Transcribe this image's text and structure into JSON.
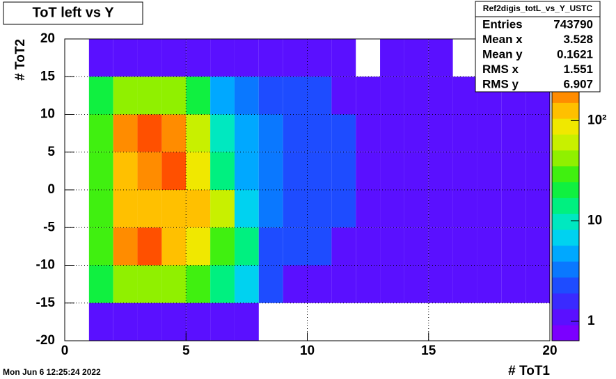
{
  "chart_data": {
    "type": "heatmap",
    "title": "ToT left vs Y",
    "x_label": "# ToT1",
    "y_label": "# ToT2",
    "timestamp": "Mon Jun  6 12:25:24 2022",
    "xbins": [
      0,
      1,
      2,
      3,
      4,
      5,
      6,
      7,
      8,
      9,
      10,
      11,
      12,
      13,
      14,
      15,
      16,
      17,
      18,
      19,
      20
    ],
    "ybins": [
      20,
      15,
      10,
      5,
      0,
      -5,
      -10,
      -15,
      -20
    ],
    "z": [
      [
        0,
        1,
        1,
        1,
        1,
        1,
        1,
        1,
        1,
        1,
        1,
        1,
        0,
        1,
        1,
        1,
        0,
        1,
        1,
        0
      ],
      [
        0,
        20,
        40,
        50,
        40,
        20,
        5,
        3,
        2,
        2,
        2,
        1,
        1,
        1,
        1,
        1,
        1,
        1,
        1,
        1
      ],
      [
        0,
        30,
        200,
        300,
        200,
        60,
        10,
        4,
        3,
        2,
        2,
        2,
        1,
        1,
        1,
        1,
        1,
        1,
        1,
        1
      ],
      [
        0,
        30,
        150,
        200,
        300,
        80,
        15,
        4,
        3,
        2,
        2,
        2,
        1,
        1,
        1,
        1,
        1,
        1,
        1,
        1
      ],
      [
        0,
        30,
        150,
        150,
        150,
        150,
        60,
        8,
        3,
        2,
        2,
        2,
        1,
        1,
        1,
        1,
        1,
        1,
        1,
        1
      ],
      [
        0,
        30,
        200,
        300,
        150,
        80,
        30,
        15,
        2,
        2,
        2,
        1,
        1,
        1,
        1,
        1,
        1,
        1,
        1,
        1
      ],
      [
        0,
        20,
        50,
        50,
        40,
        30,
        15,
        6,
        2,
        1,
        1,
        1,
        1,
        1,
        1,
        1,
        1,
        1,
        1,
        1
      ],
      [
        0,
        1,
        1,
        1,
        1,
        1,
        1,
        1,
        0,
        0,
        0,
        0,
        0,
        0,
        0,
        0,
        0,
        0,
        0,
        0
      ]
    ],
    "xlim": [
      0,
      20
    ],
    "ylim": [
      -20,
      20
    ],
    "zlim": [
      0.64,
      650
    ],
    "zlog": true,
    "xticks": [
      0,
      5,
      10,
      15,
      20
    ],
    "yticks": [
      -20,
      -15,
      -10,
      -5,
      0,
      5,
      10,
      15,
      20
    ],
    "zticks": [
      1,
      10,
      {
        "value": 100,
        "label": "10²"
      }
    ],
    "grid": true,
    "palette": [
      "#7b00ff",
      "#5a10ff",
      "#3a2aff",
      "#1e4cff",
      "#0a78ff",
      "#00a8ff",
      "#00d2f0",
      "#00e8c0",
      "#00f080",
      "#10f040",
      "#40f010",
      "#90f000",
      "#c8f000",
      "#f0e800",
      "#ffc000",
      "#ff8c00",
      "#ff5000",
      "#f02000",
      "#d00000"
    ],
    "stats": {
      "name": "Ref2digis_totL_vs_Y_USTC",
      "rows": [
        {
          "label": "Entries",
          "value": "743790"
        },
        {
          "label": "Mean x",
          "value": "3.528"
        },
        {
          "label": "Mean y",
          "value": "0.1621"
        },
        {
          "label": "RMS x",
          "value": "1.551"
        },
        {
          "label": "RMS y",
          "value": "6.907"
        }
      ]
    }
  }
}
